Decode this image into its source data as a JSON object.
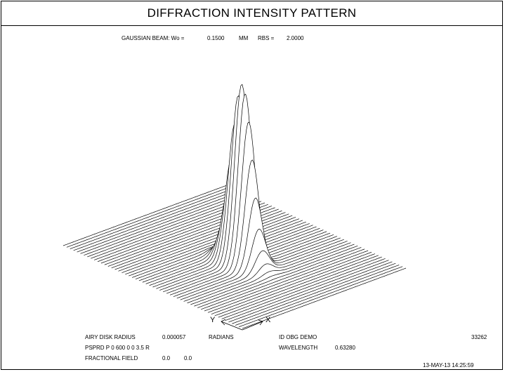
{
  "title": "DIFFRACTION INTENSITY PATTERN",
  "header": {
    "beam_label": "GAUSSIAN BEAM: Wo =",
    "beam_value": "0.1500",
    "beam_unit": "MM",
    "rbs_label": "RBS =",
    "rbs_value": "2.0000"
  },
  "footer": {
    "airy_label": "AIRY DISK RADIUS",
    "airy_value": "0.000057",
    "airy_unit": "RADIANS",
    "psprd": "PSPRD P 0 600 0 0 3.5 R",
    "field_label": "FRACTIONAL FIELD",
    "field_x": "0.0",
    "field_y": "0.0",
    "id_text": "ID OBG DEMO",
    "id_number": "33262",
    "wave_label": "WAVELENGTH",
    "wave_value": "0.63280",
    "timestamp": "13-MAY-13  14:25:59"
  },
  "chart_data": {
    "type": "surface",
    "title": "DIFFRACTION INTENSITY PATTERN",
    "function": "gaussian",
    "beam_waist_mm": 0.15,
    "rbs": 2.0,
    "axes": [
      "X",
      "Y"
    ],
    "peak_relative_intensity": 1.0,
    "grid": false
  },
  "colors": {
    "line": "#000000",
    "background": "#ffffff"
  }
}
